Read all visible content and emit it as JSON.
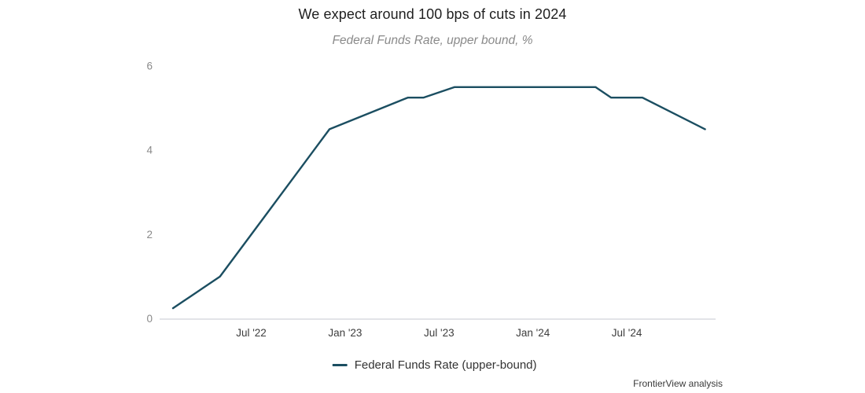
{
  "chart": {
    "title": "We expect around 100 bps of cuts in 2024",
    "subtitle": "Federal Funds Rate, upper bound, %",
    "legend": {
      "label": "Federal Funds Rate (upper-bound)"
    },
    "source": "FrontierView analysis"
  },
  "chart_data": {
    "type": "line",
    "title": "We expect around 100 bps of cuts in 2024",
    "subtitle": "Federal Funds Rate, upper bound, %",
    "xlabel": "",
    "ylabel": "Federal Funds Rate, upper bound, %",
    "x_range": "Feb 2022 - Dec 2024",
    "ylim": [
      0,
      6
    ],
    "grid": false,
    "legend_position": "bottom",
    "y_ticks": [
      0,
      2,
      4,
      6
    ],
    "x_ticks": [
      {
        "label": "Jul '22",
        "m": 5
      },
      {
        "label": "Jan '23",
        "m": 11
      },
      {
        "label": "Jul '23",
        "m": 17
      },
      {
        "label": "Jan '24",
        "m": 23
      },
      {
        "label": "Jul '24",
        "m": 29
      }
    ],
    "series": [
      {
        "name": "Federal Funds Rate (upper-bound)",
        "color": "#1b4e61",
        "points": [
          {
            "date": "Feb '22",
            "m": 0,
            "value": 0.25
          },
          {
            "date": "Mar '22",
            "m": 1,
            "value": 0.5
          },
          {
            "date": "May '22",
            "m": 3,
            "value": 1.0
          },
          {
            "date": "Aug '22",
            "m": 6,
            "value": 2.5
          },
          {
            "date": "Nov '22",
            "m": 9,
            "value": 4.0
          },
          {
            "date": "Dec '22",
            "m": 10,
            "value": 4.5
          },
          {
            "date": "May '23",
            "m": 15,
            "value": 5.25
          },
          {
            "date": "Jun '23",
            "m": 16,
            "value": 5.25
          },
          {
            "date": "Aug '23",
            "m": 18,
            "value": 5.5
          },
          {
            "date": "May '24",
            "m": 27,
            "value": 5.5
          },
          {
            "date": "Jun '24",
            "m": 28,
            "value": 5.25
          },
          {
            "date": "Aug '24",
            "m": 30,
            "value": 5.25
          },
          {
            "date": "Dec '24",
            "m": 34,
            "value": 4.5
          }
        ]
      }
    ],
    "colors": {
      "line": "#1b4e61",
      "axis_line": "#d8dce1",
      "y_tick_text": "#8a8a8a",
      "x_tick_text": "#3d3d3d",
      "title_text": "#1f1f1f",
      "subtitle_text": "#8a8a8a"
    }
  }
}
